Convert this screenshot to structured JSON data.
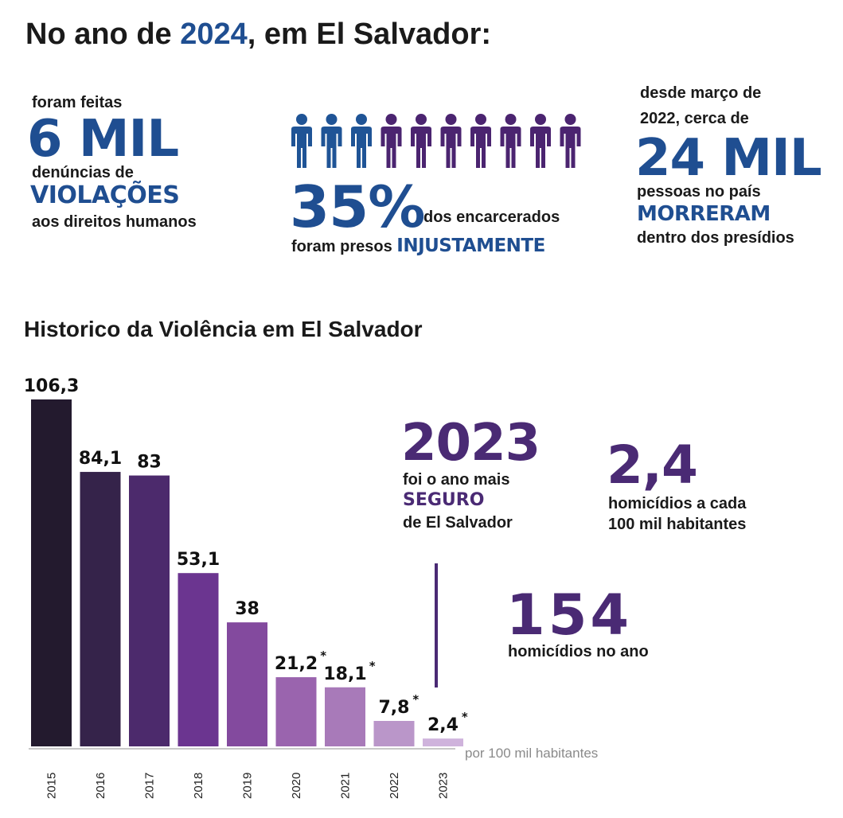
{
  "header": {
    "title_pre": "No ano de ",
    "title_year": "2024",
    "title_post": ", em El Salvador:"
  },
  "stat_reports": {
    "line1": "foram feitas",
    "big": "6 MIL",
    "line2": "denúncias de",
    "highlight": "VIOLAÇÕES",
    "line3": "aos direitos humanos"
  },
  "stat_prisoners": {
    "big": "35%",
    "line1": "dos encarcerados",
    "line2_pre": "foram presos ",
    "highlight": "INJUSTAMENTE",
    "people_total": 10,
    "people_highlighted": 3,
    "color_highlight": "#1f5496",
    "color_rest": "#4b2470"
  },
  "stat_deaths": {
    "line1": "desde março de",
    "line2": "2022, cerca de",
    "big": "24 MIL",
    "line3": "pessoas no país",
    "highlight": "MORRERAM",
    "line4": "dentro dos presídios"
  },
  "section_title": "Historico da Violência em El Salvador",
  "chart_data": {
    "type": "bar",
    "title": "Historico da Violência em El Salvador",
    "categories": [
      "2015",
      "2016",
      "2017",
      "2018",
      "2019",
      "2020",
      "2021",
      "2022",
      "2023"
    ],
    "values": [
      106.3,
      84.1,
      83,
      53.1,
      38,
      21.2,
      18.1,
      7.8,
      2.4
    ],
    "value_labels": [
      "106,3",
      "84,1",
      "83",
      "53,1",
      "38",
      "21,2",
      "18,1",
      "7,8",
      "2,4"
    ],
    "asterisk": [
      false,
      false,
      false,
      false,
      false,
      true,
      true,
      true,
      true
    ],
    "asterisk_mark": "*",
    "colors": [
      "#231a2e",
      "#35234a",
      "#4c2a6c",
      "#6b3590",
      "#834a9e",
      "#9a64ae",
      "#a87ab9",
      "#ba96c9",
      "#cfb3dc"
    ],
    "unit_label": "por 100 mil habitantes",
    "ylim": [
      0,
      106.3
    ],
    "grid": false,
    "legend": "none"
  },
  "callout_year": {
    "big": "2023",
    "line1": "foi o ano mais",
    "highlight": "SEGURO",
    "line2": "de El Salvador"
  },
  "callout_rate": {
    "big": "2,4",
    "line1": "homicídios a cada",
    "line2": "100 mil habitantes"
  },
  "callout_total": {
    "big": "154",
    "line1": "homicídios no ano"
  }
}
